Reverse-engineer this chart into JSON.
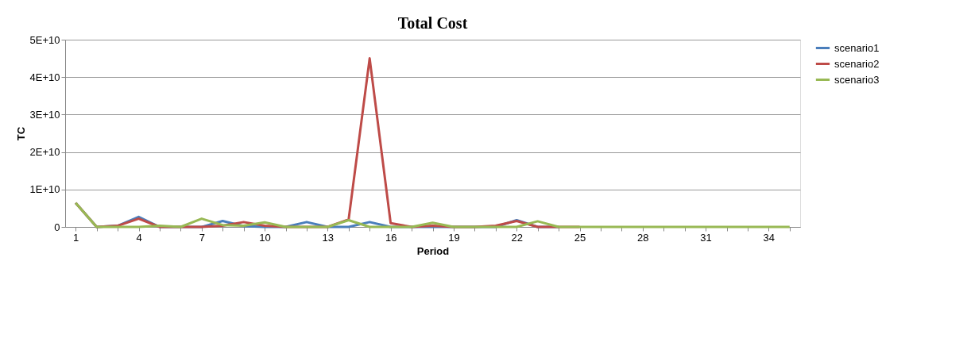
{
  "chart_data": {
    "type": "line",
    "title": "Total Cost",
    "xlabel": "Period",
    "ylabel": "TC",
    "categories": [
      "1",
      null,
      null,
      "4",
      null,
      null,
      "7",
      null,
      null,
      "10",
      null,
      null,
      "13",
      null,
      null,
      "16",
      null,
      null,
      "19",
      null,
      null,
      "22",
      null,
      null,
      "25",
      null,
      null,
      "28",
      null,
      null,
      "31",
      null,
      null,
      "34",
      null
    ],
    "series": [
      {
        "name": "scenario1",
        "color": "#4a7ebb",
        "values": [
          6400000000.0,
          0,
          300000000.0,
          2700000000.0,
          0,
          0,
          0,
          1600000000.0,
          200000000.0,
          0,
          0,
          1300000000.0,
          0,
          0,
          1300000000.0,
          0,
          0,
          0,
          0,
          0,
          0,
          1800000000.0,
          0,
          0,
          null,
          null,
          null,
          null,
          null,
          null,
          null,
          null,
          null,
          null,
          null
        ]
      },
      {
        "name": "scenario2",
        "color": "#be4b48",
        "values": [
          6400000000.0,
          0,
          300000000.0,
          2200000000.0,
          0,
          0,
          0,
          300000000.0,
          1300000000.0,
          300000000.0,
          0,
          0,
          0,
          2000000000.0,
          45000000000.0,
          1000000000.0,
          0,
          300000000.0,
          0,
          0,
          300000000.0,
          1600000000.0,
          0,
          0,
          0,
          null,
          null,
          null,
          null,
          null,
          null,
          null,
          null,
          null,
          null
        ]
      },
      {
        "name": "scenario3",
        "color": "#98b954",
        "values": [
          6400000000.0,
          0,
          0,
          0,
          300000000.0,
          0,
          2200000000.0,
          500000000.0,
          300000000.0,
          1200000000.0,
          0,
          0,
          0,
          1800000000.0,
          0,
          0,
          0,
          1100000000.0,
          0,
          0,
          0,
          0,
          1500000000.0,
          0,
          0,
          0,
          0,
          0,
          0,
          0,
          0,
          0,
          0,
          0,
          0
        ]
      }
    ],
    "ylim": [
      0,
      50000000000.0
    ],
    "yticks": [
      0,
      {
        "value": 10000000000.0,
        "label": "1E+10"
      },
      {
        "value": 20000000000.0,
        "label": "2E+10"
      },
      {
        "value": 30000000000.0,
        "label": "3E+10"
      },
      {
        "value": 40000000000.0,
        "label": "4E+10"
      },
      {
        "value": 50000000000.0,
        "label": "5E+10"
      }
    ],
    "grid": "y",
    "legend": "right",
    "marker": "none",
    "line_style": "solid"
  }
}
